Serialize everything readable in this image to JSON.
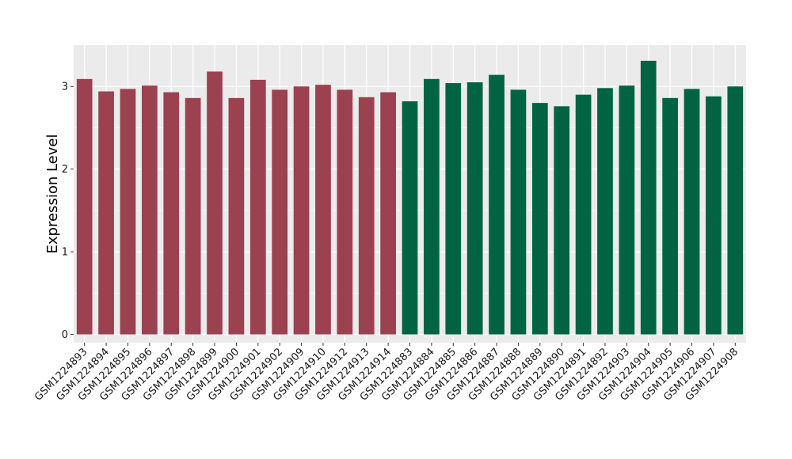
{
  "chart_data": {
    "type": "bar",
    "title": "",
    "xlabel": "",
    "ylabel": "Expression Level",
    "ylim": [
      -0.1,
      3.5
    ],
    "yticks": [
      0,
      1,
      2,
      3
    ],
    "grid": true,
    "legend": "none",
    "colors": {
      "group1": "#9b414f",
      "group2": "#006442",
      "panel": "#ebebeb",
      "grid": "#ffffff"
    },
    "categories": [
      "GSM1224893",
      "GSM1224894",
      "GSM1224895",
      "GSM1224896",
      "GSM1224897",
      "GSM1224898",
      "GSM1224899",
      "GSM1224900",
      "GSM1224901",
      "GSM1224902",
      "GSM1224909",
      "GSM1224910",
      "GSM1224912",
      "GSM1224913",
      "GSM1224914",
      "GSM1224883",
      "GSM1224884",
      "GSM1224885",
      "GSM1224886",
      "GSM1224887",
      "GSM1224888",
      "GSM1224889",
      "GSM1224890",
      "GSM1224891",
      "GSM1224892",
      "GSM1224903",
      "GSM1224904",
      "GSM1224905",
      "GSM1224906",
      "GSM1224907",
      "GSM1224908"
    ],
    "values": [
      3.09,
      2.94,
      2.97,
      3.01,
      2.93,
      2.86,
      3.18,
      2.86,
      3.08,
      2.96,
      3.0,
      3.02,
      2.96,
      2.87,
      2.93,
      2.82,
      3.09,
      3.04,
      3.05,
      3.14,
      2.96,
      2.8,
      2.76,
      2.9,
      2.98,
      3.01,
      3.31,
      2.86,
      2.97,
      2.88,
      3.0
    ],
    "bar_groups": [
      "group1",
      "group1",
      "group1",
      "group1",
      "group1",
      "group1",
      "group1",
      "group1",
      "group1",
      "group1",
      "group1",
      "group1",
      "group1",
      "group1",
      "group1",
      "group2",
      "group2",
      "group2",
      "group2",
      "group2",
      "group2",
      "group2",
      "group2",
      "group2",
      "group2",
      "group2",
      "group2",
      "group2",
      "group2",
      "group2",
      "group2"
    ]
  }
}
